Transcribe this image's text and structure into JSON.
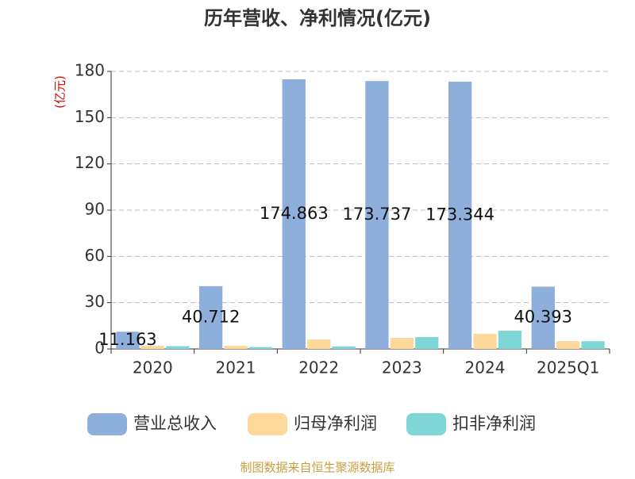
{
  "chart_data": {
    "type": "bar",
    "title": "历年营收、净利情况(亿元)",
    "y_label": "(亿元)",
    "source": "制图数据来自恒生聚源数据库",
    "categories": [
      "2020",
      "2021",
      "2022",
      "2023",
      "2024",
      "2025Q1"
    ],
    "series": [
      {
        "name": "营业总收入",
        "color": "#8eaedc",
        "values": [
          11.163,
          40.712,
          174.863,
          173.737,
          173.344,
          40.393
        ]
      },
      {
        "name": "归母净利润",
        "color": "#fdd89a",
        "values": [
          2.0,
          2.0,
          6.2,
          7.2,
          9.8,
          5.1
        ]
      },
      {
        "name": "扣非净利润",
        "color": "#7fd6d6",
        "values": [
          1.8,
          1.2,
          1.6,
          7.7,
          11.8,
          5.0
        ]
      }
    ],
    "labeled_series": [
      0
    ],
    "ylim": [
      0,
      180
    ],
    "yticks": [
      0,
      30,
      60,
      90,
      120,
      150,
      180
    ],
    "grid": true
  }
}
